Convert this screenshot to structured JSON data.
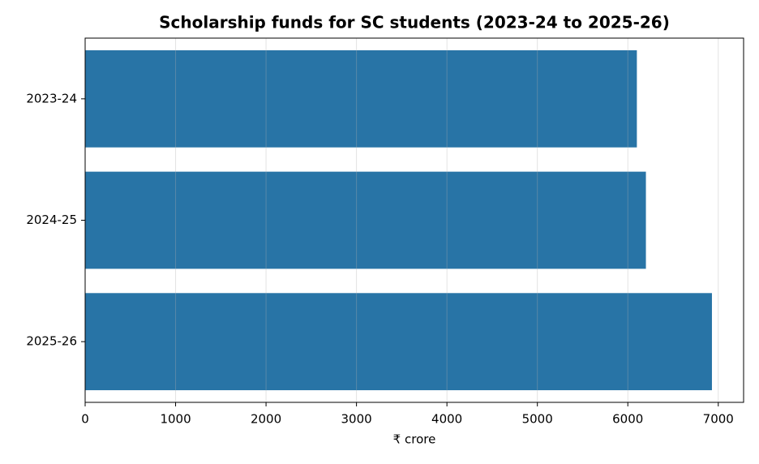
{
  "chart_data": {
    "type": "barh",
    "title": "Scholarship funds for SC students (2023-24 to 2025-26)",
    "categories": [
      "2023-24",
      "2024-25",
      "2025-26"
    ],
    "values": [
      6100,
      6200,
      6930
    ],
    "color": "#2874a6",
    "xlabel": "₹ crore",
    "xlim": [
      0,
      7280
    ],
    "xticks": [
      0,
      1000,
      2000,
      3000,
      4000,
      5000,
      6000,
      7000
    ],
    "grid": true
  }
}
